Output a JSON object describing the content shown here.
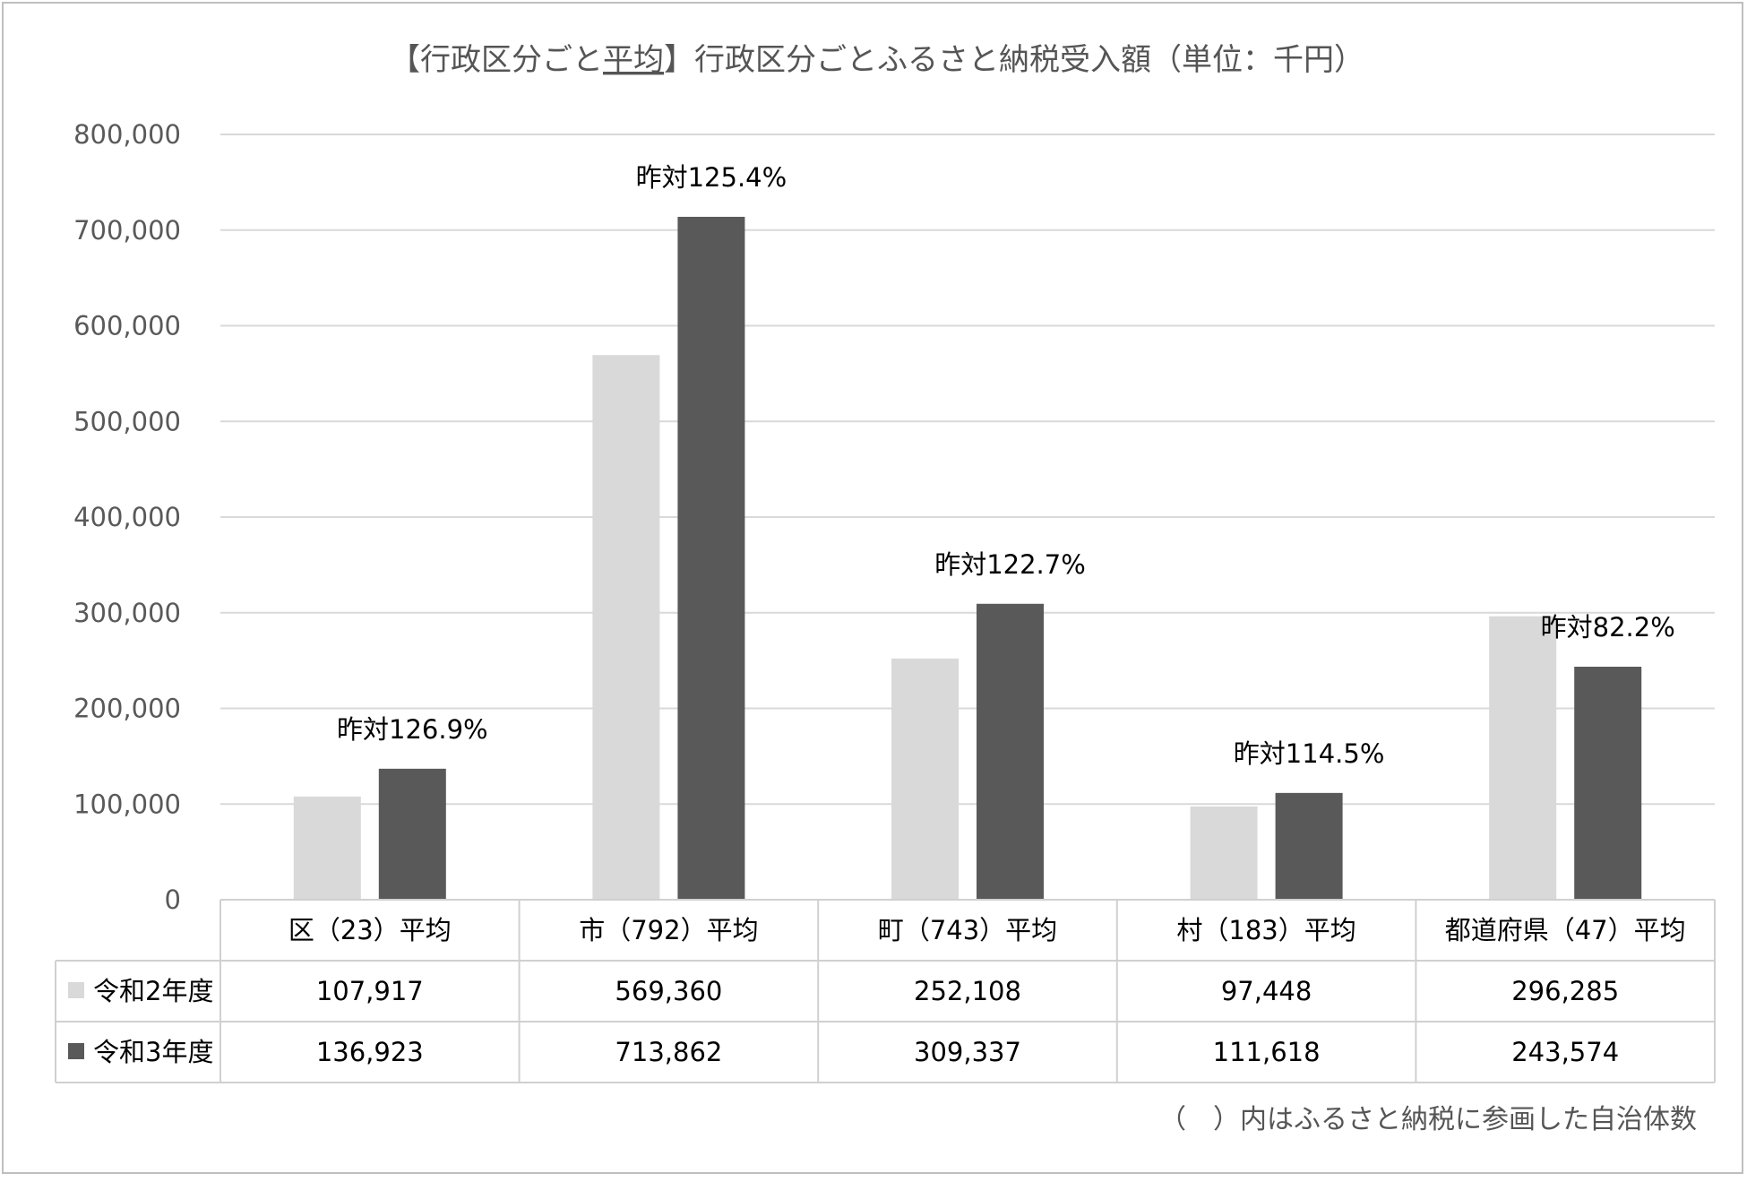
{
  "chart_data": {
    "type": "bar",
    "title_prefix": "【行政区分ごと",
    "title_underlined": "平均",
    "title_suffix": "】行政区分ごとふるさと納税受入額（単位：千円）",
    "categories": [
      "区（23）平均",
      "市（792）平均",
      "町（743）平均",
      "村（183）平均",
      "都道府県（47）平均"
    ],
    "series": [
      {
        "name": "令和2年度",
        "color": "#d9d9d9",
        "values": [
          107917,
          569360,
          252108,
          97448,
          296285
        ]
      },
      {
        "name": "令和3年度",
        "color": "#595959",
        "values": [
          136923,
          713862,
          309337,
          111618,
          243574
        ]
      }
    ],
    "table_values": [
      [
        "107,917",
        "569,360",
        "252,108",
        "97,448",
        "296,285"
      ],
      [
        "136,923",
        "713,862",
        "309,337",
        "111,618",
        "243,574"
      ]
    ],
    "annotations": [
      "昨対126.9%",
      "昨対125.4%",
      "昨対122.7%",
      "昨対114.5%",
      "昨対82.2%"
    ],
    "ylim": [
      0,
      800000
    ],
    "yticks": [
      0,
      100000,
      200000,
      300000,
      400000,
      500000,
      600000,
      700000,
      800000
    ],
    "ytick_labels": [
      "0",
      "100,000",
      "200,000",
      "300,000",
      "400,000",
      "500,000",
      "600,000",
      "700,000",
      "800,000"
    ],
    "grid": true,
    "legend": "data-table",
    "footnote": "（　）内はふるさと納税に参画した自治体数"
  }
}
